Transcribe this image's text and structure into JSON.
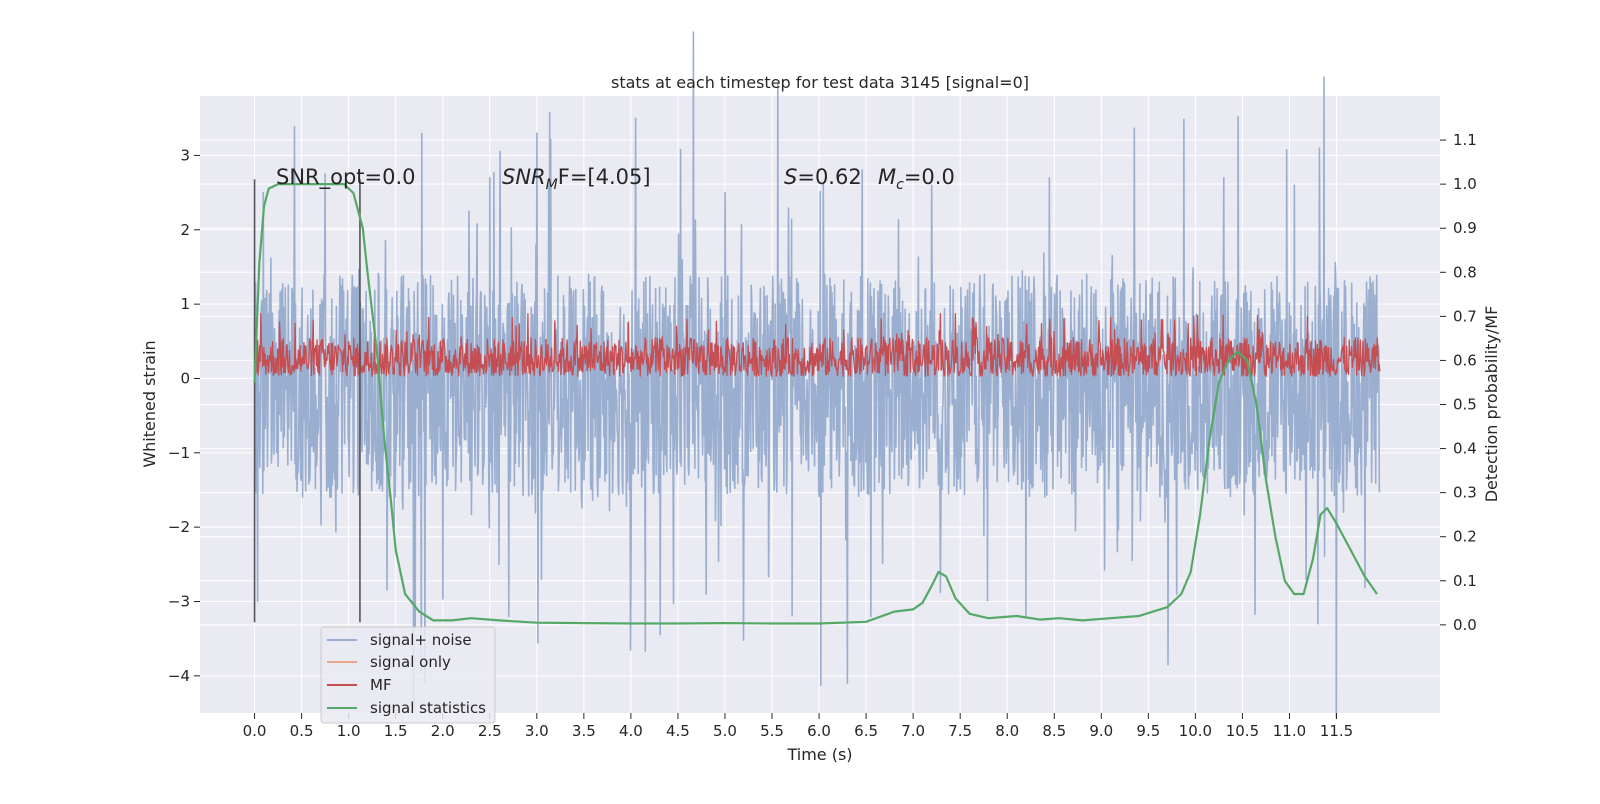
{
  "chart_data": {
    "type": "line",
    "title": "stats at each timestep for test data 3145 [signal=0]",
    "xlabel": "Time (s)",
    "ylabel": "Whitened strain",
    "y2label": "Detection probability/MF",
    "xlim": [
      -0.58,
      12.6
    ],
    "ylim": [
      -4.5,
      3.8
    ],
    "y2lim": [
      -0.2,
      1.2
    ],
    "x_ticks": [
      0.0,
      0.5,
      1.0,
      1.5,
      2.0,
      2.5,
      3.0,
      3.5,
      4.0,
      4.5,
      5.0,
      5.5,
      6.0,
      6.5,
      7.0,
      7.5,
      8.0,
      8.5,
      9.0,
      9.5,
      10.0,
      10.5,
      11.0,
      11.5
    ],
    "x_tick_labels": [
      "0.0",
      "0.5",
      "1.0",
      "1.5",
      "2.0",
      "2.5",
      "3.0",
      "3.5",
      "4.0",
      "4.5",
      "5.0",
      "5.5",
      "6.0",
      "6.5",
      "7.0",
      "7.5",
      "8.0",
      "8.5",
      "9.0",
      "9.5",
      "10.0",
      "10.5",
      "11.0",
      "11.5"
    ],
    "y_ticks": [
      -4,
      -3,
      -2,
      -1,
      0,
      1,
      2,
      3
    ],
    "y_tick_labels": [
      "−4",
      "−3",
      "−2",
      "−1",
      "0",
      "1",
      "2",
      "3"
    ],
    "y2_ticks": [
      0.0,
      0.1,
      0.2,
      0.3,
      0.4,
      0.5,
      0.6,
      0.7,
      0.8,
      0.9,
      1.0,
      1.1
    ],
    "y2_tick_labels": [
      "0.0",
      "0.1",
      "0.2",
      "0.3",
      "0.4",
      "0.5",
      "0.6",
      "0.7",
      "0.8",
      "0.9",
      "1.0",
      "1.1"
    ],
    "grid": true,
    "legend_position": "lower-left",
    "annotations": {
      "snr_opt": "SNR_opt=0.0",
      "snr_mf_prefix": "SNR",
      "snr_mf_sub": "M",
      "snr_mf_suffix": "F=[4.05]",
      "s_var": "S",
      "s_val": "=0.62",
      "mc_var": "M",
      "mc_sub": "c",
      "mc_val": "=0.0"
    },
    "window_markers": {
      "start": 0.0,
      "end": 1.12,
      "y_range": [
        -3.28,
        2.68
      ]
    },
    "series": [
      {
        "name": "signal+ noise",
        "color": "#9aaed0",
        "axis": "left",
        "x_range": [
          0.0,
          11.96
        ],
        "typical_range": [
          -1.6,
          1.4
        ],
        "spikes": [
          [
            0.03,
            -3.0
          ],
          [
            0.09,
            2.5
          ],
          [
            0.75,
            2.75
          ],
          [
            2.5,
            2.7
          ],
          [
            2.7,
            -3.2
          ],
          [
            3.0,
            3.3
          ],
          [
            3.05,
            -2.7
          ],
          [
            4.05,
            3.5
          ],
          [
            4.0,
            -2.5
          ],
          [
            4.8,
            -2.9
          ],
          [
            5.0,
            2.5
          ],
          [
            6.3,
            -4.1
          ],
          [
            6.55,
            -3.2
          ],
          [
            7.2,
            2.6
          ],
          [
            8.2,
            -3.2
          ],
          [
            8.45,
            2.7
          ],
          [
            9.8,
            -2.9
          ],
          [
            10.3,
            2.7
          ],
          [
            11.32,
            3.1
          ],
          [
            11.3,
            -3.3
          ],
          [
            11.05,
            2.6
          ],
          [
            2.6,
            -2.5
          ]
        ]
      },
      {
        "name": "signal only",
        "color": "#e8a58c",
        "axis": "left",
        "x": [],
        "y": []
      },
      {
        "name": "MF",
        "color": "#c44e52",
        "axis": "left",
        "x_range": [
          0.02,
          11.96
        ],
        "typical_range": [
          0.03,
          0.55
        ],
        "peak": 0.88
      },
      {
        "name": "signal statistics",
        "color": "#55a868",
        "axis": "right",
        "x": [
          0.0,
          0.05,
          0.1,
          0.15,
          0.25,
          0.45,
          0.75,
          0.95,
          1.05,
          1.15,
          1.2,
          1.3,
          1.38,
          1.45,
          1.5,
          1.6,
          1.75,
          1.9,
          2.1,
          2.3,
          2.6,
          3.0,
          3.5,
          4.0,
          4.5,
          5.0,
          5.5,
          6.0,
          6.5,
          6.8,
          7.0,
          7.1,
          7.2,
          7.27,
          7.35,
          7.45,
          7.6,
          7.8,
          8.1,
          8.35,
          8.55,
          8.8,
          9.1,
          9.4,
          9.55,
          9.7,
          9.85,
          9.95,
          10.05,
          10.15,
          10.25,
          10.35,
          10.45,
          10.55,
          10.65,
          10.75,
          10.85,
          10.95,
          11.05,
          11.15,
          11.25,
          11.33,
          11.4,
          11.5,
          11.65,
          11.8,
          11.93
        ],
        "y": [
          0.55,
          0.82,
          0.95,
          0.99,
          1.0,
          1.0,
          1.0,
          1.0,
          0.98,
          0.9,
          0.8,
          0.62,
          0.42,
          0.28,
          0.17,
          0.07,
          0.03,
          0.01,
          0.01,
          0.015,
          0.01,
          0.005,
          0.004,
          0.003,
          0.003,
          0.004,
          0.003,
          0.003,
          0.007,
          0.03,
          0.035,
          0.05,
          0.09,
          0.12,
          0.11,
          0.06,
          0.025,
          0.015,
          0.02,
          0.012,
          0.015,
          0.01,
          0.015,
          0.02,
          0.03,
          0.04,
          0.07,
          0.12,
          0.25,
          0.42,
          0.55,
          0.6,
          0.62,
          0.6,
          0.5,
          0.33,
          0.2,
          0.1,
          0.07,
          0.07,
          0.15,
          0.25,
          0.265,
          0.23,
          0.17,
          0.11,
          0.07
        ]
      }
    ]
  }
}
